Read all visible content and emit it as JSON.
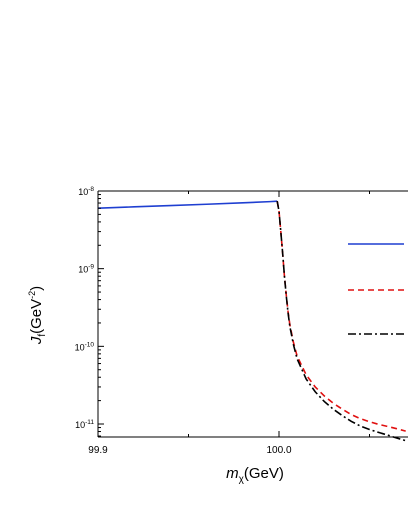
{
  "chart_data": {
    "type": "line",
    "title": "",
    "xlabel": {
      "symbol": "m",
      "sub": "χ",
      "unit": "(GeV)"
    },
    "ylabel": {
      "symbol": "J",
      "sub": "f",
      "unit_base": "(GeV",
      "unit_exp": "-2",
      "unit_close": ")"
    },
    "xlim": [
      99.9,
      100.07
    ],
    "ylim": [
      3e-12,
      1.05e-08
    ],
    "yscale": "log",
    "grid": false,
    "legend": "right",
    "x_ticks": [
      {
        "value": 99.9,
        "label": "99.9"
      },
      {
        "value": 100.0,
        "label": "100.0"
      }
    ],
    "x_minor_ticks": [
      99.95,
      100.05
    ],
    "y_ticks": [
      {
        "value": 1e-08,
        "base": "10",
        "exp": "-8"
      },
      {
        "value": 1e-09,
        "base": "10",
        "exp": "-9"
      },
      {
        "value": 1e-10,
        "base": "10",
        "exp": "-10"
      },
      {
        "value": 1e-11,
        "base": "10",
        "exp": "-11"
      }
    ],
    "series": [
      {
        "style": "solid",
        "color": "#1f3fd1",
        "x": [
          99.9,
          99.92,
          99.94,
          99.96,
          99.98,
          99.995,
          99.999
        ],
        "y": [
          6e-09,
          6.25e-09,
          6.5e-09,
          6.75e-09,
          7.05e-09,
          7.3e-09,
          7.4e-09
        ]
      },
      {
        "style": "dashed",
        "color": "#e01010",
        "x": [
          99.999,
          100.0,
          100.001,
          100.002,
          100.003,
          100.004,
          100.005,
          100.006,
          100.008,
          100.01,
          100.015,
          100.02,
          100.025,
          100.03,
          100.035,
          100.04,
          100.045,
          100.05,
          100.055,
          100.06,
          100.065,
          100.07
        ],
        "y": [
          7.4e-09,
          5.5e-09,
          3e-09,
          1.6e-09,
          8e-10,
          4.6e-10,
          2.8e-10,
          1.9e-10,
          1.12e-10,
          7.5e-11,
          4.3e-11,
          3e-11,
          2.3e-11,
          1.85e-11,
          1.55e-11,
          1.32e-11,
          1.17e-11,
          1.07e-11,
          9.9e-12,
          9.3e-12,
          8.7e-12,
          8.1e-12
        ]
      },
      {
        "style": "dashdot",
        "color": "#000000",
        "x": [
          99.999,
          100.0,
          100.001,
          100.002,
          100.003,
          100.004,
          100.005,
          100.006,
          100.008,
          100.01,
          100.015,
          100.02,
          100.025,
          100.03,
          100.035,
          100.04,
          100.045,
          100.05,
          100.055,
          100.06,
          100.065,
          100.07
        ],
        "y": [
          7.4e-09,
          5.5e-09,
          3e-09,
          1.6e-09,
          8e-10,
          4.5e-10,
          2.7e-10,
          1.8e-10,
          1.05e-10,
          6.9e-11,
          3.8e-11,
          2.6e-11,
          1.95e-11,
          1.55e-11,
          1.28e-11,
          1.08e-11,
          9.4e-12,
          8.5e-12,
          7.8e-12,
          7.2e-12,
          6.6e-12,
          6.1e-12
        ]
      }
    ]
  }
}
